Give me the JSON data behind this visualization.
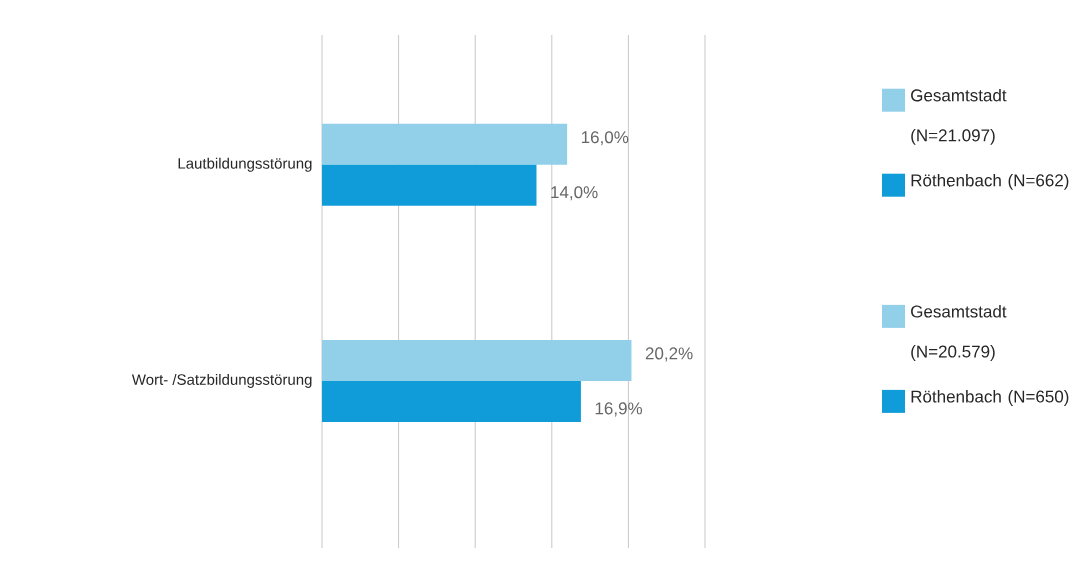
{
  "chart_data": {
    "type": "bar",
    "orientation": "horizontal",
    "categories": [
      "Lautbildungsstörung",
      "Wort- /Satzbildungsstörung"
    ],
    "series": [
      {
        "name": "Gesamtstadt (N=21.097)",
        "color": "#92d0ea",
        "values": [
          16.0,
          null
        ],
        "value_labels": [
          "16,0%",
          null
        ]
      },
      {
        "name": "Röthenbach (N=662)",
        "color": "#109cd8",
        "values": [
          14.0,
          null
        ],
        "value_labels": [
          "14,0%",
          null
        ]
      },
      {
        "name": "Gesamtstadt (N=20.579)",
        "color": "#92d0ea",
        "values": [
          null,
          20.2
        ],
        "value_labels": [
          null,
          "20,2%"
        ]
      },
      {
        "name": "Röthenbach (N=650)",
        "color": "#109cd8",
        "values": [
          null,
          16.9
        ],
        "value_labels": [
          null,
          "16,9%"
        ]
      }
    ],
    "xlim": [
      0,
      25
    ],
    "xticks": [
      0,
      5,
      10,
      15,
      20,
      25
    ],
    "grid": "x",
    "tick_labels": "y",
    "legend": "right"
  }
}
